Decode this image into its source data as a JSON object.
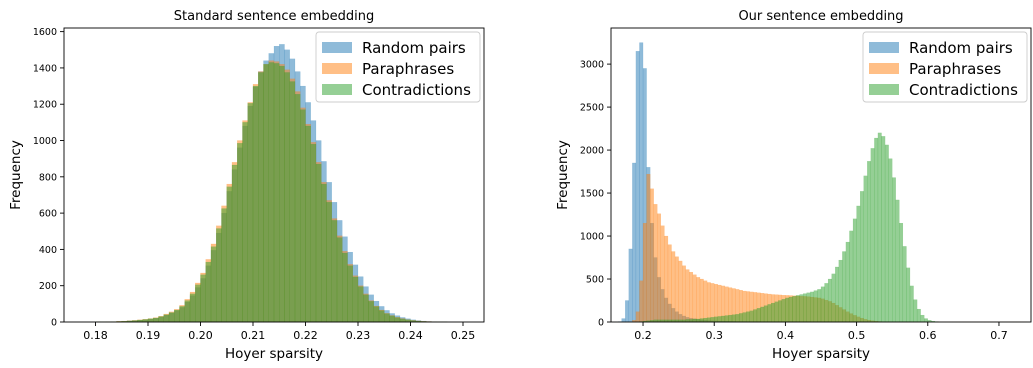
{
  "chart_data": [
    {
      "type": "histogram",
      "title": "Standard sentence embedding",
      "xlabel": "Hoyer sparsity",
      "ylabel": "Frequency",
      "xlim": [
        0.174,
        0.254
      ],
      "ylim": [
        0,
        1620
      ],
      "xticks": [
        0.18,
        0.19,
        0.2,
        0.21,
        0.22,
        0.23,
        0.24,
        0.25
      ],
      "xtick_labels": [
        "0.18",
        "0.19",
        "0.20",
        "0.21",
        "0.22",
        "0.23",
        "0.24",
        "0.25"
      ],
      "yticks": [
        0,
        200,
        400,
        600,
        800,
        1000,
        1200,
        1400,
        1600
      ],
      "ytick_labels": [
        "0",
        "200",
        "400",
        "600",
        "800",
        "1000",
        "1200",
        "1400",
        "1600"
      ],
      "legend_position": "top-right",
      "bin_width": 0.001,
      "series": [
        {
          "name": "Random pairs",
          "color": "#1f77b4",
          "opacity": 0.5,
          "bin_start": 0.18,
          "values": [
            1,
            1,
            2,
            2,
            3,
            4,
            6,
            8,
            10,
            13,
            16,
            20,
            28,
            38,
            50,
            62,
            80,
            110,
            145,
            190,
            240,
            310,
            395,
            490,
            600,
            720,
            840,
            960,
            1080,
            1190,
            1295,
            1380,
            1440,
            1480,
            1520,
            1530,
            1500,
            1450,
            1380,
            1300,
            1210,
            1110,
            1000,
            885,
            770,
            660,
            560,
            470,
            385,
            315,
            250,
            195,
            150,
            115,
            86,
            64,
            47,
            35,
            25,
            18,
            12,
            8,
            5,
            3,
            2,
            1,
            1
          ]
        },
        {
          "name": "Paraphrases",
          "color": "#ff7f0e",
          "opacity": 0.5,
          "bin_start": 0.18,
          "values": [
            1,
            1,
            2,
            2,
            4,
            5,
            7,
            9,
            12,
            15,
            19,
            24,
            32,
            44,
            56,
            70,
            92,
            125,
            165,
            215,
            270,
            345,
            430,
            530,
            640,
            760,
            880,
            1000,
            1110,
            1210,
            1310,
            1380,
            1420,
            1440,
            1435,
            1420,
            1390,
            1340,
            1270,
            1180,
            1090,
            990,
            880,
            770,
            670,
            570,
            475,
            390,
            318,
            255,
            200,
            155,
            118,
            88,
            66,
            48,
            36,
            26,
            19,
            13,
            9,
            6,
            4,
            3,
            2,
            1,
            1
          ]
        },
        {
          "name": "Contradictions",
          "color": "#2ca02c",
          "opacity": 0.5,
          "bin_start": 0.18,
          "values": [
            1,
            1,
            1,
            2,
            3,
            4,
            6,
            8,
            11,
            14,
            18,
            22,
            30,
            40,
            52,
            66,
            86,
            118,
            155,
            205,
            260,
            330,
            415,
            515,
            625,
            745,
            865,
            985,
            1100,
            1205,
            1300,
            1375,
            1420,
            1430,
            1425,
            1410,
            1375,
            1325,
            1255,
            1170,
            1080,
            980,
            870,
            760,
            660,
            560,
            465,
            380,
            310,
            248,
            195,
            150,
            114,
            85,
            63,
            46,
            34,
            24,
            17,
            12,
            8,
            5,
            3,
            2,
            1,
            1,
            1
          ]
        }
      ]
    },
    {
      "type": "histogram",
      "title": "Our sentence embedding",
      "xlabel": "Hoyer sparsity",
      "ylabel": "Frequency",
      "xlim": [
        0.155,
        0.745
      ],
      "ylim": [
        0,
        3420
      ],
      "xticks": [
        0.2,
        0.3,
        0.4,
        0.5,
        0.6,
        0.7
      ],
      "xtick_labels": [
        "0.2",
        "0.3",
        "0.4",
        "0.5",
        "0.6",
        "0.7"
      ],
      "yticks": [
        0,
        500,
        1000,
        1500,
        2000,
        2500,
        3000
      ],
      "ytick_labels": [
        "0",
        "500",
        "1000",
        "1500",
        "2000",
        "2500",
        "3000"
      ],
      "legend_position": "top-right",
      "bin_width": 0.005,
      "series": [
        {
          "name": "Random pairs",
          "color": "#1f77b4",
          "opacity": 0.5,
          "bin_start": 0.165,
          "values": [
            5,
            40,
            250,
            850,
            1850,
            3150,
            3250,
            2950,
            1800,
            1150,
            750,
            520,
            380,
            280,
            210,
            160,
            120,
            90,
            70,
            55,
            45,
            38,
            30,
            25,
            20,
            17,
            15,
            13,
            11,
            10,
            9,
            8,
            7,
            6,
            5,
            5,
            4,
            4,
            3,
            3,
            2,
            2,
            2,
            2,
            1,
            1,
            1,
            1,
            1,
            1
          ]
        },
        {
          "name": "Paraphrases",
          "color": "#ff7f0e",
          "opacity": 0.5,
          "bin_start": 0.185,
          "values": [
            20,
            120,
            480,
            1150,
            1720,
            1550,
            1370,
            1260,
            1120,
            1000,
            900,
            820,
            760,
            710,
            655,
            610,
            580,
            550,
            520,
            500,
            480,
            460,
            450,
            440,
            430,
            420,
            410,
            400,
            390,
            380,
            370,
            360,
            355,
            350,
            345,
            340,
            335,
            330,
            325,
            320,
            318,
            315,
            312,
            310,
            308,
            305,
            302,
            300,
            298,
            295,
            290,
            285,
            280,
            270,
            255,
            240,
            220,
            195,
            170,
            145,
            120,
            98,
            78,
            60,
            45,
            32,
            22,
            15,
            10,
            6,
            4,
            2,
            1,
            1,
            1,
            1,
            1,
            1,
            1,
            1,
            1,
            1,
            1,
            1,
            1,
            1,
            1,
            1,
            1,
            1,
            1,
            1,
            1,
            1,
            1,
            1,
            1,
            1,
            1,
            1,
            1,
            1,
            1,
            1,
            1,
            1,
            1,
            1,
            1,
            1,
            1
          ]
        },
        {
          "name": "Contradictions",
          "color": "#2ca02c",
          "opacity": 0.5,
          "bin_start": 0.195,
          "values": [
            5,
            10,
            15,
            20,
            25,
            25,
            25,
            25,
            25,
            25,
            25,
            25,
            25,
            30,
            30,
            35,
            35,
            40,
            45,
            50,
            55,
            60,
            65,
            70,
            75,
            80,
            85,
            90,
            100,
            110,
            120,
            130,
            145,
            160,
            175,
            190,
            205,
            220,
            235,
            250,
            265,
            280,
            290,
            300,
            310,
            320,
            330,
            340,
            350,
            365,
            380,
            410,
            450,
            500,
            560,
            640,
            720,
            820,
            930,
            1060,
            1200,
            1350,
            1520,
            1700,
            1870,
            2020,
            2140,
            2200,
            2160,
            2060,
            1900,
            1680,
            1420,
            1150,
            880,
            630,
            420,
            260,
            150,
            80,
            40,
            20,
            10,
            5
          ]
        }
      ]
    }
  ]
}
